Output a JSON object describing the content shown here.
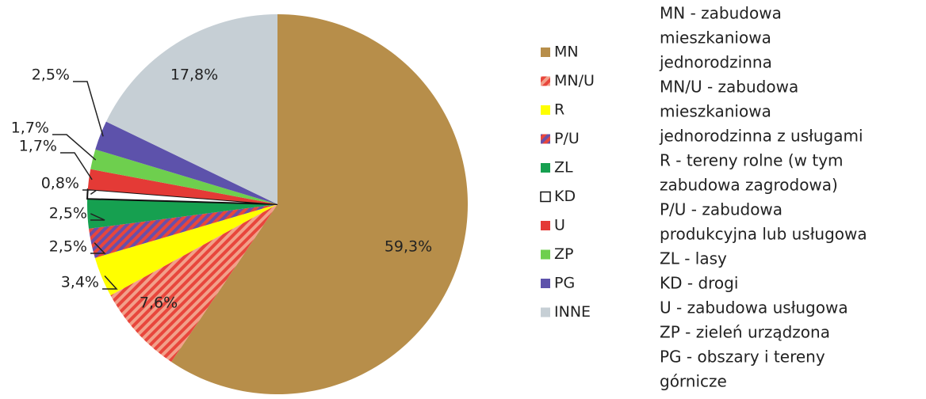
{
  "chart_data": {
    "type": "pie",
    "categories": [
      "MN",
      "MN/U",
      "R",
      "P/U",
      "ZL",
      "KD",
      "U",
      "ZP",
      "PG",
      "INNE"
    ],
    "values": [
      59.3,
      7.6,
      3.4,
      2.5,
      2.5,
      0.8,
      1.7,
      1.7,
      2.5,
      17.8
    ],
    "value_labels": [
      "59,3%",
      "7,6%",
      "3,4%",
      "2,5%",
      "2,5%",
      "0,8%",
      "1,7%",
      "1,7%",
      "2,5%",
      "17,8%"
    ],
    "colors": [
      "#b78e4a",
      "#e8463c",
      "#ffff00",
      "#6a4fa8",
      "#16a050",
      "#ffffff",
      "#e43a36",
      "#6ecf4e",
      "#5d52ab",
      "#c6cfd5"
    ],
    "hatched": [
      false,
      true,
      false,
      true,
      false,
      false,
      false,
      false,
      false,
      false
    ],
    "description": [
      "MN - zabudowa",
      "mieszkaniowa",
      "jednorodzinna",
      "MN/U - zabudowa",
      "mieszkaniowa",
      "jednorodzinna z usługami",
      "R - tereny rolne (w tym",
      "zabudowa zagrodowa)",
      "P/U - zabudowa",
      "produkcyjna lub usługowa",
      "ZL - lasy",
      "KD - drogi",
      "U - zabudowa usługowa",
      "ZP - zieleń urządzona",
      "PG - obszary i tereny",
      "górnicze"
    ]
  }
}
